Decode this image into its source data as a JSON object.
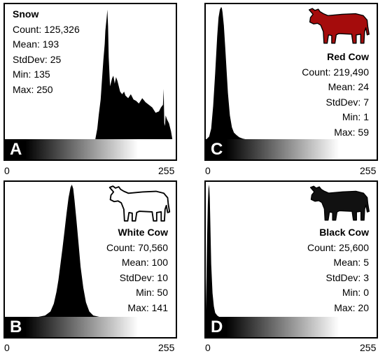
{
  "panels": [
    {
      "id": "A",
      "letter": "A",
      "name": "Snow",
      "stats": {
        "count": "Count: 125,326",
        "mean": "Mean: 193",
        "stddev": "StdDev: 25",
        "min": "Min: 135",
        "max": "Max: 250"
      },
      "axis_min": "0",
      "axis_max": "255"
    },
    {
      "id": "C",
      "letter": "C",
      "name": "Red Cow",
      "stats": {
        "count": "Count: 219,490",
        "mean": "Mean: 24",
        "stddev": "StdDev: 7",
        "min": "Min: 1",
        "max": "Max: 59"
      },
      "axis_min": "0",
      "axis_max": "255",
      "icon": "cow-icon",
      "icon_color": "#a50c0c"
    },
    {
      "id": "B",
      "letter": "B",
      "name": "White Cow",
      "stats": {
        "count": "Count: 70,560",
        "mean": "Mean: 100",
        "stddev": "StdDev: 10",
        "min": "Min: 50",
        "max": "Max: 141"
      },
      "axis_min": "0",
      "axis_max": "255",
      "icon": "cow-outline-icon",
      "icon_color": "#ffffff"
    },
    {
      "id": "D",
      "letter": "D",
      "name": "Black Cow",
      "stats": {
        "count": "Count: 25,600",
        "mean": "Mean: 5",
        "stddev": "StdDev: 3",
        "min": "Min: 0",
        "max": "Max: 20"
      },
      "axis_min": "0",
      "axis_max": "255",
      "icon": "cow-icon",
      "icon_color": "#111111"
    }
  ],
  "chart_data": [
    {
      "type": "area",
      "panel": "A",
      "title": "Snow",
      "xlim": [
        0,
        255
      ],
      "color": "#000000",
      "x": [
        135,
        138,
        140,
        143,
        145,
        147,
        149,
        150,
        152,
        153,
        154,
        155,
        157,
        160,
        162,
        164,
        166,
        168,
        170,
        172,
        175,
        178,
        180,
        184,
        188,
        192,
        196,
        200,
        205,
        210,
        215,
        220,
        225,
        230,
        233,
        236,
        237,
        238,
        239,
        240,
        242,
        245,
        248,
        250
      ],
      "y": [
        0,
        0.08,
        0.18,
        0.3,
        0.45,
        0.6,
        0.72,
        0.82,
        0.92,
        0.98,
        0.85,
        0.62,
        0.4,
        0.46,
        0.48,
        0.42,
        0.47,
        0.44,
        0.4,
        0.36,
        0.34,
        0.36,
        0.33,
        0.31,
        0.34,
        0.3,
        0.29,
        0.27,
        0.31,
        0.28,
        0.26,
        0.24,
        0.2,
        0.21,
        0.24,
        0.26,
        0.38,
        0.12,
        0.1,
        0.18,
        0.15,
        0.12,
        0.06,
        0
      ]
    },
    {
      "type": "area",
      "panel": "C",
      "title": "Red Cow",
      "xlim": [
        0,
        255
      ],
      "color": "#000000",
      "x": [
        1,
        5,
        8,
        11,
        14,
        17,
        19,
        21,
        23,
        24,
        25,
        27,
        29,
        31,
        33,
        36,
        39,
        42,
        46,
        50,
        55,
        59
      ],
      "y": [
        0,
        0.02,
        0.08,
        0.25,
        0.5,
        0.78,
        0.92,
        0.98,
        1.0,
        0.99,
        0.96,
        0.86,
        0.7,
        0.52,
        0.35,
        0.18,
        0.09,
        0.05,
        0.03,
        0.015,
        0.005,
        0
      ]
    },
    {
      "type": "area",
      "panel": "B",
      "title": "White Cow",
      "xlim": [
        0,
        255
      ],
      "color": "#000000",
      "x": [
        50,
        60,
        68,
        73,
        77,
        80,
        83,
        86,
        89,
        92,
        95,
        98,
        100,
        102,
        104,
        107,
        110,
        113,
        117,
        121,
        126,
        132,
        141
      ],
      "y": [
        0,
        0.01,
        0.04,
        0.1,
        0.19,
        0.28,
        0.4,
        0.52,
        0.65,
        0.78,
        0.9,
        0.98,
        1.0,
        0.97,
        0.88,
        0.72,
        0.55,
        0.38,
        0.22,
        0.11,
        0.04,
        0.01,
        0
      ]
    },
    {
      "type": "area",
      "panel": "D",
      "title": "Black Cow",
      "xlim": [
        0,
        255
      ],
      "color": "#000000",
      "x": [
        0,
        1,
        2,
        3,
        4,
        5,
        6,
        7,
        8,
        10,
        12,
        14,
        17,
        20
      ],
      "y": [
        0.05,
        0.3,
        0.6,
        0.85,
        0.97,
        1.0,
        0.9,
        0.65,
        0.4,
        0.18,
        0.08,
        0.03,
        0.01,
        0
      ]
    }
  ]
}
